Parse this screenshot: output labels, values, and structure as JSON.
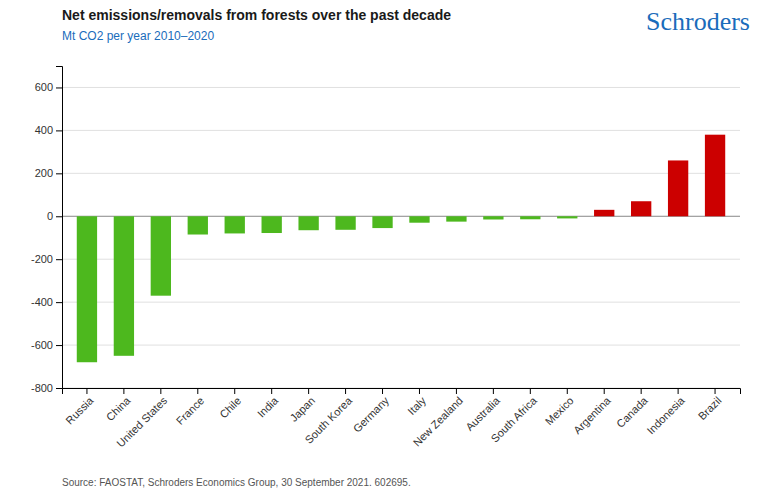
{
  "chart_data": {
    "type": "bar",
    "title": "Net emissions/removals from forests over the past decade",
    "subtitle": "Mt CO2 per year 2010–2020",
    "annotations": [
      "Schroders",
      "Source: FAOSTAT, Schroders Economics Group, 30 September 2021. 602695."
    ],
    "categories": [
      "Russia",
      "China",
      "United States",
      "France",
      "Chile",
      "India",
      "Japan",
      "South Korea",
      "Germany",
      "Italy",
      "New Zealand",
      "Australia",
      "South Africa",
      "Mexico",
      "Argentina",
      "Canada",
      "Indonesia",
      "Brazil"
    ],
    "values": [
      -680,
      -650,
      -370,
      -85,
      -80,
      -78,
      -65,
      -63,
      -55,
      -30,
      -25,
      -15,
      -14,
      -10,
      30,
      70,
      260,
      380
    ],
    "colors": [
      "#4db81e",
      "#4db81e",
      "#4db81e",
      "#4db81e",
      "#4db81e",
      "#4db81e",
      "#4db81e",
      "#4db81e",
      "#4db81e",
      "#4db81e",
      "#4db81e",
      "#4db81e",
      "#4db81e",
      "#4db81e",
      "#cc0000",
      "#cc0000",
      "#cc0000",
      "#cc0000"
    ],
    "ylim": [
      -800,
      700
    ],
    "yticks": [
      -800,
      -600,
      -400,
      -200,
      0,
      200,
      400,
      600
    ],
    "grid": true
  }
}
